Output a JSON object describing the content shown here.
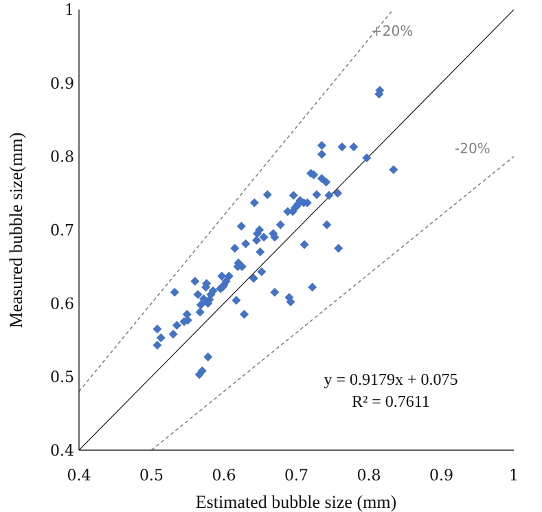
{
  "chart_data": {
    "type": "scatter",
    "xlabel": "Estimated bubble size (mm)",
    "ylabel": "Measured bubble size(mm)",
    "xlim": [
      0.4,
      1
    ],
    "ylim": [
      0.4,
      1
    ],
    "x_ticks": [
      "0.4",
      "0.5",
      "0.6",
      "0.7",
      "0.8",
      "0.9",
      "1"
    ],
    "y_ticks": [
      "0.4",
      "0.5",
      "0.6",
      "0.7",
      "0.8",
      "0.9",
      "1"
    ],
    "grid": false,
    "marker_color": "#4472C4",
    "reference_lines": [
      {
        "label": "",
        "slope": 1.0,
        "style": "solid",
        "color": "#000000"
      },
      {
        "label": "+20%",
        "slope": 1.2,
        "style": "dashed",
        "color": "#808080"
      },
      {
        "label": "-20%",
        "slope": 0.8,
        "style": "dashed",
        "color": "#808080"
      }
    ],
    "annotations": {
      "equation": "y = 0.9179x + 0.075",
      "r_squared": "R² = 0.7611",
      "plus_band": "+20%",
      "minus_band": "-20%"
    },
    "points": [
      [
        0.508,
        0.565
      ],
      [
        0.508,
        0.543
      ],
      [
        0.513,
        0.553
      ],
      [
        0.53,
        0.558
      ],
      [
        0.532,
        0.615
      ],
      [
        0.535,
        0.57
      ],
      [
        0.545,
        0.575
      ],
      [
        0.55,
        0.577
      ],
      [
        0.549,
        0.585
      ],
      [
        0.56,
        0.63
      ],
      [
        0.564,
        0.612
      ],
      [
        0.566,
        0.503
      ],
      [
        0.568,
        0.598
      ],
      [
        0.567,
        0.588
      ],
      [
        0.57,
        0.508
      ],
      [
        0.572,
        0.606
      ],
      [
        0.575,
        0.622
      ],
      [
        0.576,
        0.627
      ],
      [
        0.578,
        0.527
      ],
      [
        0.578,
        0.6
      ],
      [
        0.58,
        0.605
      ],
      [
        0.582,
        0.612
      ],
      [
        0.585,
        0.617
      ],
      [
        0.595,
        0.62
      ],
      [
        0.598,
        0.622
      ],
      [
        0.597,
        0.637
      ],
      [
        0.6,
        0.625
      ],
      [
        0.603,
        0.63
      ],
      [
        0.607,
        0.637
      ],
      [
        0.615,
        0.675
      ],
      [
        0.617,
        0.604
      ],
      [
        0.619,
        0.65
      ],
      [
        0.62,
        0.655
      ],
      [
        0.622,
        0.652
      ],
      [
        0.624,
        0.705
      ],
      [
        0.625,
        0.65
      ],
      [
        0.628,
        0.585
      ],
      [
        0.63,
        0.681
      ],
      [
        0.641,
        0.634
      ],
      [
        0.642,
        0.737
      ],
      [
        0.645,
        0.686
      ],
      [
        0.646,
        0.695
      ],
      [
        0.649,
        0.7
      ],
      [
        0.65,
        0.67
      ],
      [
        0.652,
        0.643
      ],
      [
        0.655,
        0.69
      ],
      [
        0.66,
        0.748
      ],
      [
        0.668,
        0.695
      ],
      [
        0.67,
        0.69
      ],
      [
        0.67,
        0.615
      ],
      [
        0.678,
        0.707
      ],
      [
        0.688,
        0.725
      ],
      [
        0.69,
        0.608
      ],
      [
        0.692,
        0.602
      ],
      [
        0.695,
        0.725
      ],
      [
        0.696,
        0.747
      ],
      [
        0.698,
        0.73
      ],
      [
        0.7,
        0.732
      ],
      [
        0.702,
        0.735
      ],
      [
        0.705,
        0.74
      ],
      [
        0.71,
        0.737
      ],
      [
        0.711,
        0.68
      ],
      [
        0.715,
        0.737
      ],
      [
        0.72,
        0.777
      ],
      [
        0.722,
        0.622
      ],
      [
        0.724,
        0.775
      ],
      [
        0.728,
        0.748
      ],
      [
        0.735,
        0.815
      ],
      [
        0.735,
        0.803
      ],
      [
        0.735,
        0.77
      ],
      [
        0.741,
        0.765
      ],
      [
        0.742,
        0.707
      ],
      [
        0.745,
        0.747
      ],
      [
        0.757,
        0.75
      ],
      [
        0.758,
        0.675
      ],
      [
        0.763,
        0.813
      ],
      [
        0.779,
        0.813
      ],
      [
        0.797,
        0.798
      ],
      [
        0.814,
        0.885
      ],
      [
        0.815,
        0.89
      ],
      [
        0.834,
        0.782
      ]
    ]
  }
}
